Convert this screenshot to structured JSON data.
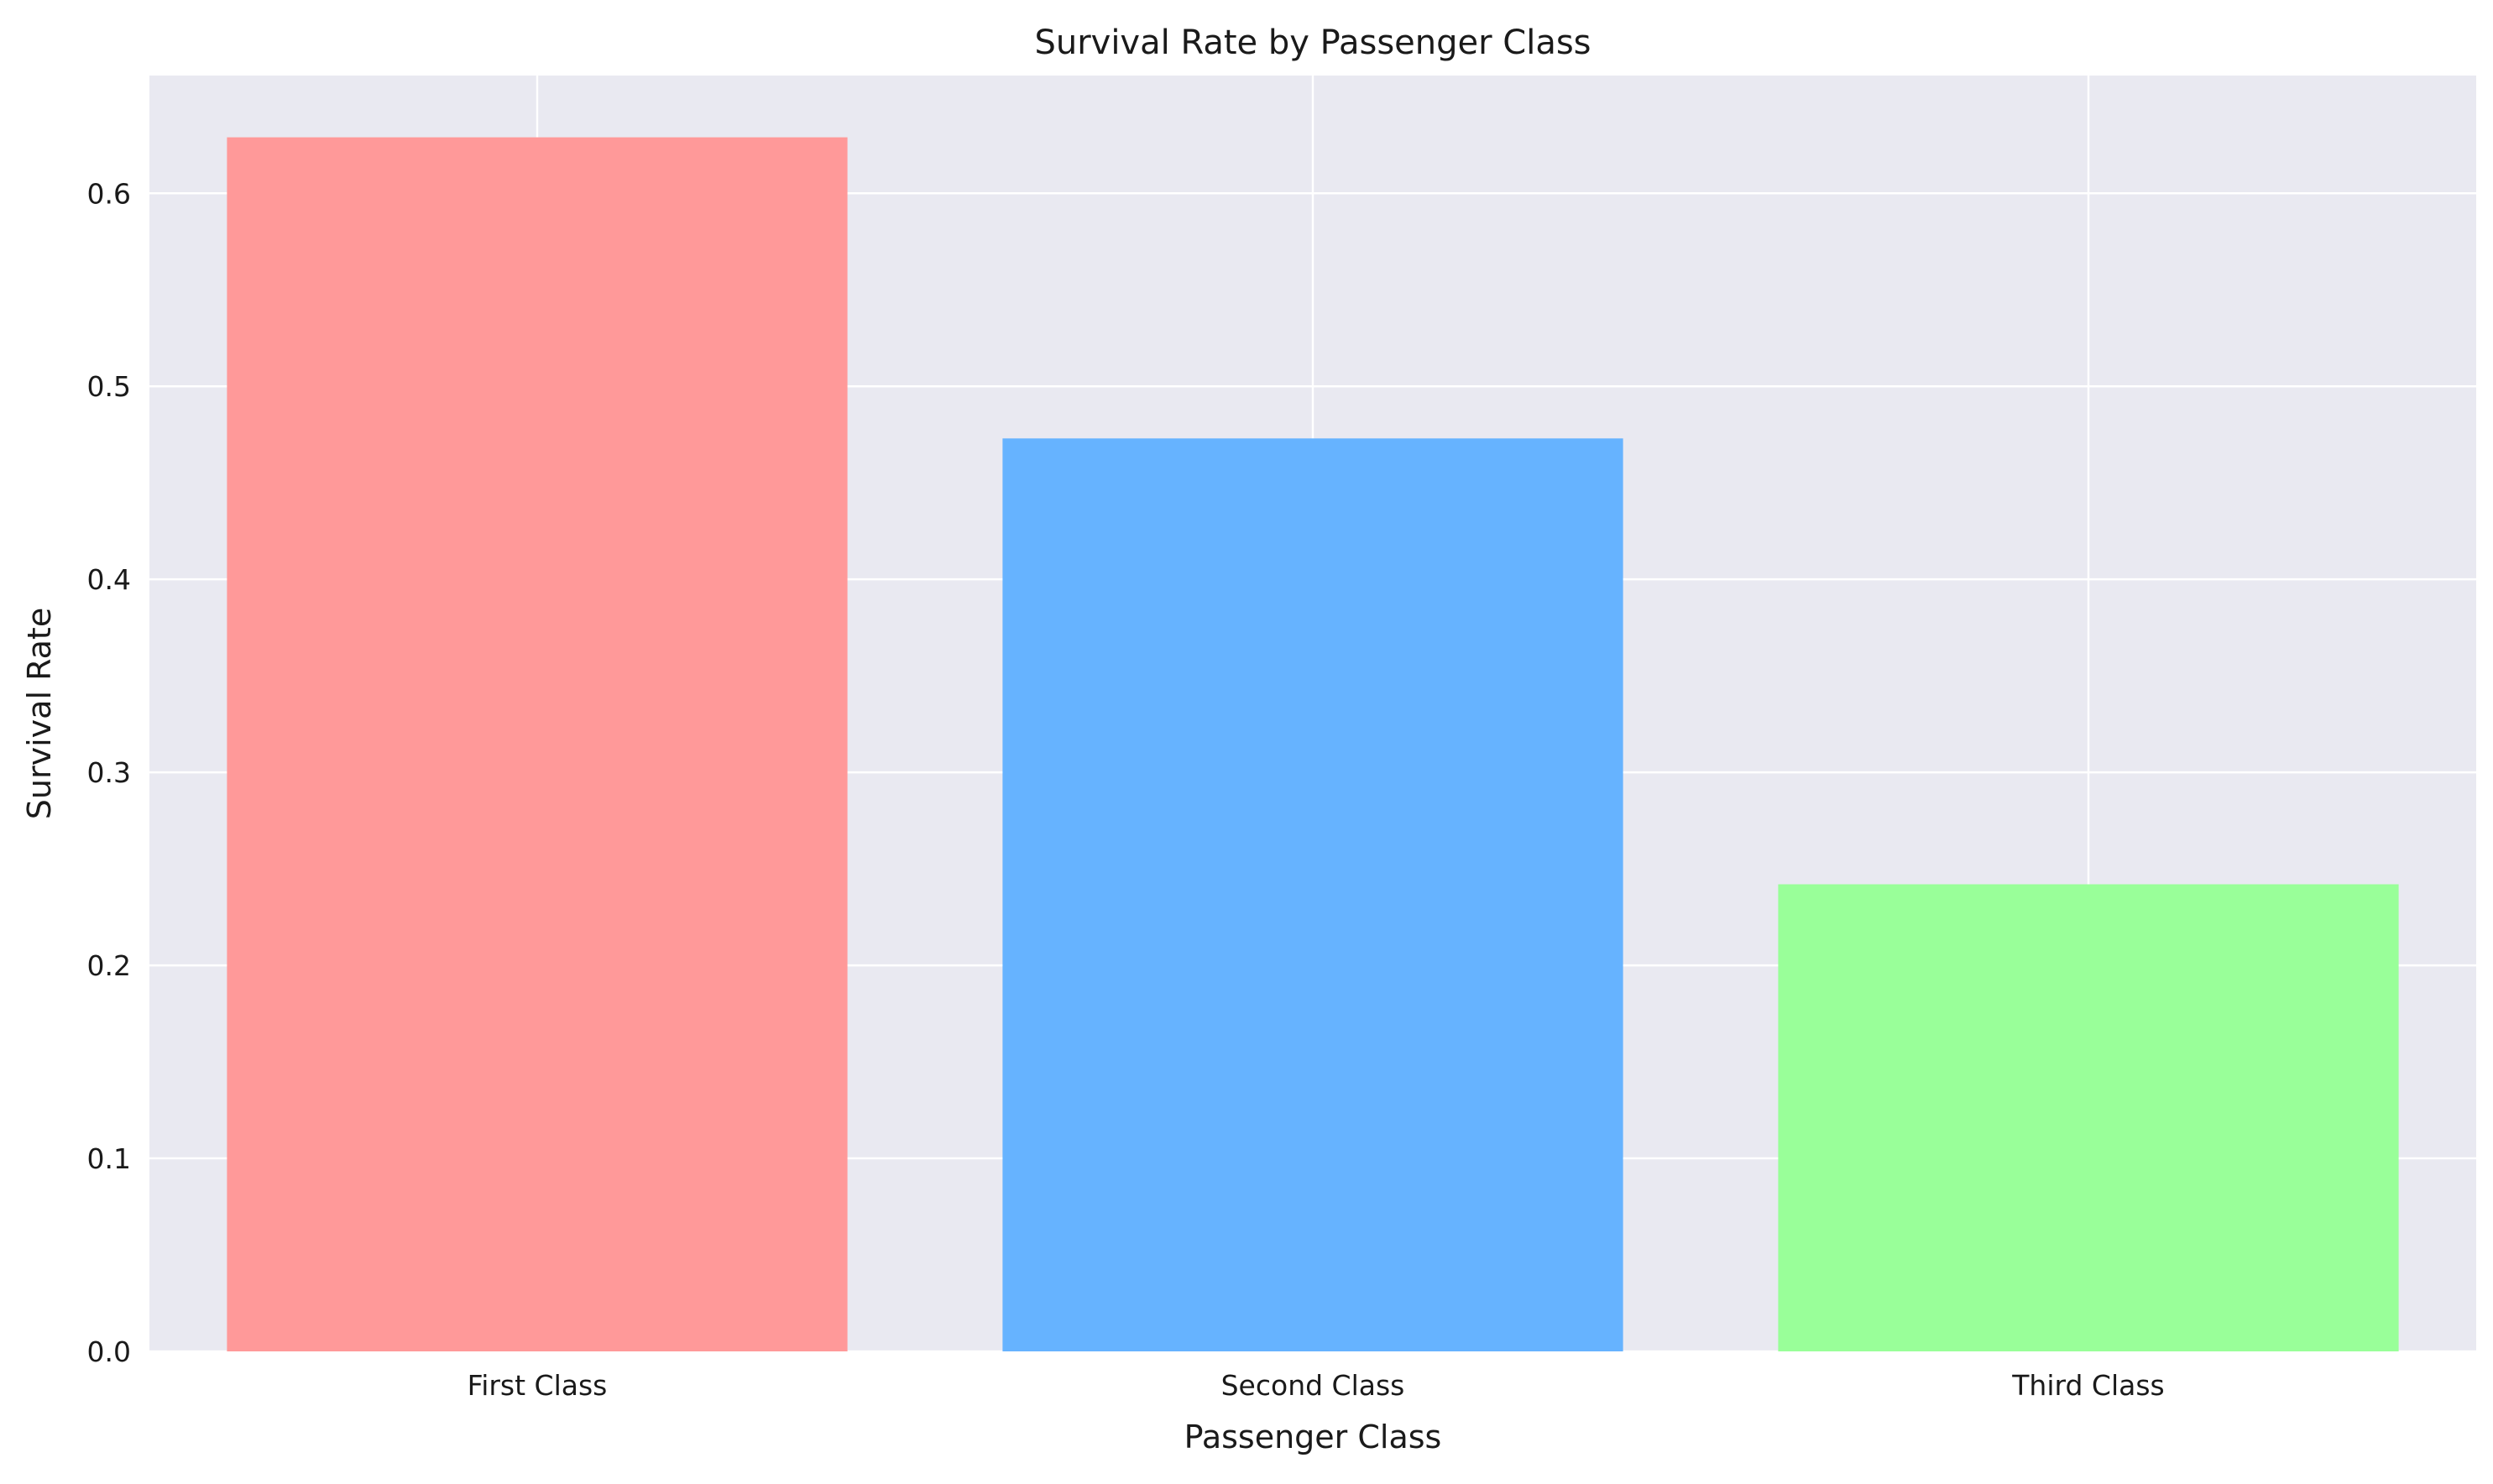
{
  "chart_data": {
    "type": "bar",
    "title": "Survival Rate by Passenger Class",
    "xlabel": "Passenger Class",
    "ylabel": "Survival Rate",
    "categories": [
      "First Class",
      "Second Class",
      "Third Class"
    ],
    "values": [
      0.629,
      0.473,
      0.242
    ],
    "colors": [
      "#ff9999",
      "#66b3ff",
      "#99ff99"
    ],
    "ylim": [
      0,
      0.661
    ],
    "yticks": [
      "0.0",
      "0.1",
      "0.2",
      "0.3",
      "0.4",
      "0.5",
      "0.6"
    ],
    "grid": true,
    "background": "#e9e9f1",
    "grid_color": "#ffffff",
    "legend": "none"
  }
}
